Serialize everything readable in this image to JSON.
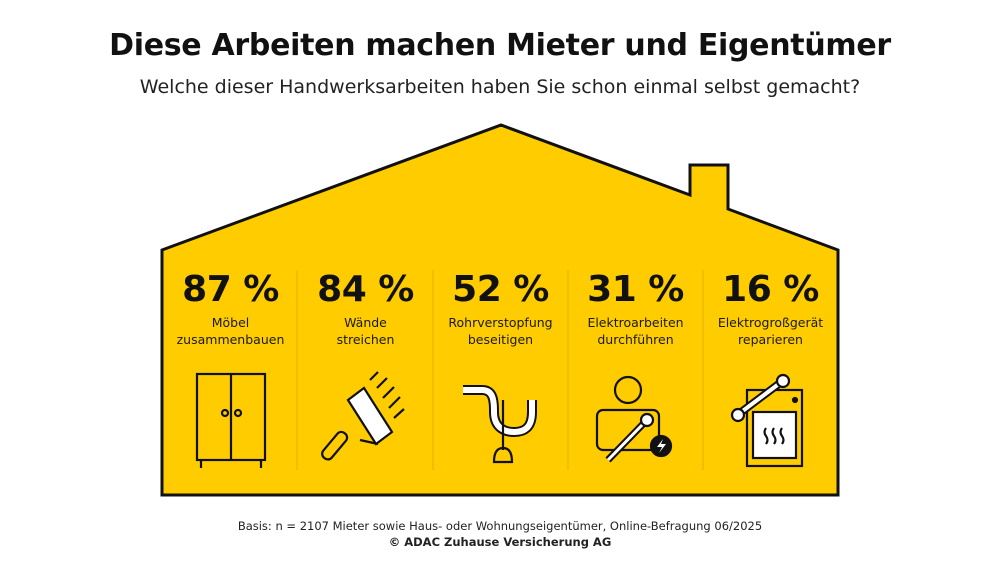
{
  "header": {
    "title": "Diese Arbeiten machen Mieter und Eigentümer",
    "subtitle": "Welche dieser Handwerksarbeiten haben Sie schon einmal selbst gemacht?"
  },
  "colors": {
    "house_fill": "#FFCC00",
    "outline": "#111111",
    "icon_light": "#FFFFFF"
  },
  "chart_data": {
    "type": "bar",
    "title": "Diese Arbeiten machen Mieter und Eigentümer",
    "subtitle": "Welche dieser Handwerksarbeiten haben Sie schon einmal selbst gemacht?",
    "unit": "%",
    "categories": [
      "Möbel zusammenbauen",
      "Wände streichen",
      "Rohrverstopfung beseitigen",
      "Elektroarbeiten durchführen",
      "Elektrogroßgerät reparieren"
    ],
    "values": [
      87,
      84,
      52,
      31,
      16
    ],
    "items": [
      {
        "value_label": "87 %",
        "line1": "Möbel",
        "line2": "zusammenbauen",
        "icon": "wardrobe-icon"
      },
      {
        "value_label": "84 %",
        "line1": "Wände",
        "line2": "streichen",
        "icon": "paint-roller-icon"
      },
      {
        "value_label": "52 %",
        "line1": "Rohrverstopfung",
        "line2": "beseitigen",
        "icon": "pipe-plunger-icon"
      },
      {
        "value_label": "31 %",
        "line1": "Elektroarbeiten",
        "line2": "durchführen",
        "icon": "electrician-icon"
      },
      {
        "value_label": "16 %",
        "line1": "Elektrogroßgerät",
        "line2": "reparieren",
        "icon": "oven-wrench-icon"
      }
    ]
  },
  "footer": {
    "basis": "Basis: n = 2107 Mieter sowie Haus- oder Wohnungseigentümer, Online-Befragung 06/2025",
    "copyright": "© ADAC Zuhause Versicherung AG"
  }
}
